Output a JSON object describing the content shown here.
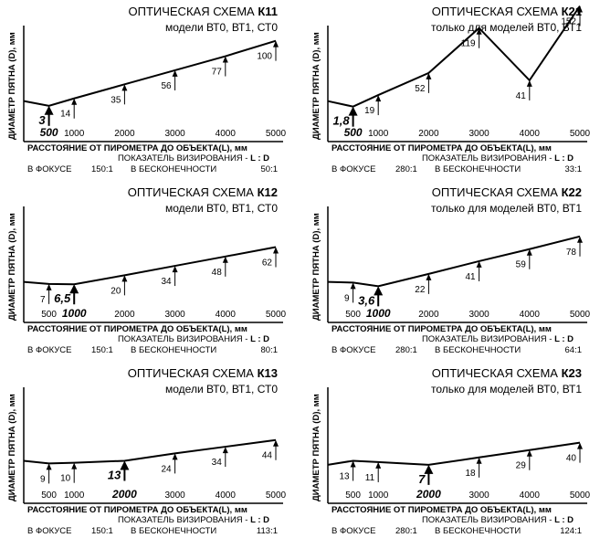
{
  "panels": [
    {
      "title_prefix": "ОПТИЧЕСКАЯ СХЕМА",
      "scheme": "К11",
      "subtitle": "модели ВТ0, ВТ1, СТ0",
      "ylabel": "ДИАМЕТР ПЯТНА (D), мм",
      "xlabel": "РАССТОЯНИЕ ОТ ПИРОМЕТРА ДО ОБЪЕКТА(L), мм",
      "ratio_caption_prefix": "ПОКАЗАТЕЛЬ ВИЗИРОВАНИЯ - ",
      "ratio_caption_bold": "L : D",
      "focus_label": "В ФОКУСЕ",
      "focus_ratio": "150:1",
      "infinity_label": "В БЕСКОНЕЧНОСТИ",
      "infinity_ratio": "50:1",
      "ticks": [
        "500",
        "1000",
        "2000",
        "3000",
        "4000",
        "5000"
      ],
      "focus_distance": 500,
      "chart_data": {
        "type": "line",
        "x": [
          500,
          1000,
          2000,
          3000,
          4000,
          5000
        ],
        "values": [
          3,
          14,
          35,
          56,
          77,
          100
        ],
        "labels": [
          "3",
          "14",
          "35",
          "56",
          "77",
          "100"
        ],
        "x_start": 300,
        "y_start": 10
      }
    },
    {
      "title_prefix": "ОПТИЧЕСКАЯ СХЕМА",
      "scheme": "К21",
      "subtitle": "только для моделей ВТ0, ВТ1",
      "ylabel": "ДИАМЕТР ПЯТНА (D), мм",
      "xlabel": "РАССТОЯНИЕ ОТ ПИРОМЕТРА ДО ОБЪЕКТА(L), мм",
      "ratio_caption_prefix": "ПОКАЗАТЕЛЬ ВИЗИРОВАНИЯ - ",
      "ratio_caption_bold": "L : D",
      "focus_label": "В ФОКУСЕ",
      "focus_ratio": "280:1",
      "infinity_label": "В БЕСКОНЕЧНОСТИ",
      "infinity_ratio": "33:1",
      "ticks": [
        "500",
        "1000",
        "2000",
        "3000",
        "4000",
        "5000"
      ],
      "focus_distance": 500,
      "chart_data": {
        "type": "line",
        "x": [
          500,
          1000,
          2000,
          3000,
          4000,
          5000
        ],
        "values": [
          1.8,
          19,
          52,
          119,
          41,
          152
        ],
        "labels": [
          "1,8",
          "19",
          "52",
          "119",
          "41",
          "152"
        ],
        "x_start": 300,
        "y_start": 10
      }
    },
    {
      "title_prefix": "ОПТИЧЕСКАЯ СХЕМА",
      "scheme": "К12",
      "subtitle": "модели ВТ0, ВТ1, СТ0",
      "ylabel": "ДИАМЕТР ПЯТНА (D), мм",
      "xlabel": "РАССТОЯНИЕ ОТ ПИРОМЕТРА ДО ОБЪЕКТА(L), мм",
      "ratio_caption_prefix": "ПОКАЗАТЕЛЬ ВИЗИРОВАНИЯ - ",
      "ratio_caption_bold": "L : D",
      "focus_label": "В ФОКУСЕ",
      "focus_ratio": "150:1",
      "infinity_label": "В БЕСКОНЕЧНОСТИ",
      "infinity_ratio": "80:1",
      "ticks": [
        "500",
        "1000",
        "2000",
        "3000",
        "4000",
        "5000"
      ],
      "focus_distance": 1000,
      "chart_data": {
        "type": "line",
        "x": [
          500,
          1000,
          2000,
          3000,
          4000,
          5000
        ],
        "values": [
          7,
          6.5,
          20,
          34,
          48,
          62
        ],
        "labels": [
          "7",
          "6,5",
          "20",
          "34",
          "48",
          "62"
        ],
        "x_start": 300,
        "y_start": 10
      }
    },
    {
      "title_prefix": "ОПТИЧЕСКАЯ СХЕМА",
      "scheme": "К22",
      "subtitle": "только для моделей ВТ0, ВТ1",
      "ylabel": "ДИАМЕТР ПЯТНА (D), мм",
      "xlabel": "РАССТОЯНИЕ ОТ ПИРОМЕТРА ДО ОБЪЕКТА(L), мм",
      "ratio_caption_prefix": "ПОКАЗАТЕЛЬ ВИЗИРОВАНИЯ - ",
      "ratio_caption_bold": "L : D",
      "focus_label": "В ФОКУСЕ",
      "focus_ratio": "280:1",
      "infinity_label": "В БЕСКОНЕЧНОСТИ",
      "infinity_ratio": "64:1",
      "ticks": [
        "500",
        "1000",
        "2000",
        "3000",
        "4000",
        "5000"
      ],
      "focus_distance": 1000,
      "chart_data": {
        "type": "line",
        "x": [
          500,
          1000,
          2000,
          3000,
          4000,
          5000
        ],
        "values": [
          9,
          3.6,
          22,
          41,
          59,
          78
        ],
        "labels": [
          "9",
          "3,6",
          "22",
          "41",
          "59",
          "78"
        ],
        "x_start": 300,
        "y_start": 10
      }
    },
    {
      "title_prefix": "ОПТИЧЕСКАЯ СХЕМА",
      "scheme": "К13",
      "subtitle": "модели ВТ0, ВТ1, СТ0",
      "ylabel": "ДИАМЕТР ПЯТНА (D), мм",
      "xlabel": "РАССТОЯНИЕ ОТ ПИРОМЕТРА ДО ОБЪЕКТА(L), мм",
      "ratio_caption_prefix": "ПОКАЗАТЕЛЬ ВИЗИРОВАНИЯ - ",
      "ratio_caption_bold": "L : D",
      "focus_label": "В ФОКУСЕ",
      "focus_ratio": "150:1",
      "infinity_label": "В БЕСКОНЕЧНОСТИ",
      "infinity_ratio": "113:1",
      "ticks": [
        "500",
        "1000",
        "2000",
        "3000",
        "4000",
        "5000"
      ],
      "focus_distance": 2000,
      "chart_data": {
        "type": "line",
        "x": [
          500,
          1000,
          2000,
          3000,
          4000,
          5000
        ],
        "values": [
          9,
          10,
          13,
          24,
          34,
          44
        ],
        "labels": [
          "9",
          "10",
          "13",
          "24",
          "34",
          "44"
        ],
        "x_start": 300,
        "y_start": 13
      }
    },
    {
      "title_prefix": "ОПТИЧЕСКАЯ СХЕМА",
      "scheme": "К23",
      "subtitle": "только для моделей ВТ0, ВТ1",
      "ylabel": "ДИАМЕТР ПЯТНА (D), мм",
      "xlabel": "РАССТОЯНИЕ ОТ ПИРОМЕТРА ДО ОБЪЕКТА(L), мм",
      "ratio_caption_prefix": "ПОКАЗАТЕЛЬ ВИЗИРОВАНИЯ - ",
      "ratio_caption_bold": "L : D",
      "focus_label": "В ФОКУСЕ",
      "focus_ratio": "280:1",
      "infinity_label": "В БЕСКОНЕЧНОСТИ",
      "infinity_ratio": "124:1",
      "ticks": [
        "500",
        "1000",
        "2000",
        "3000",
        "4000",
        "5000"
      ],
      "focus_distance": 2000,
      "chart_data": {
        "type": "line",
        "x": [
          500,
          1000,
          2000,
          3000,
          4000,
          5000
        ],
        "values": [
          13,
          11,
          7,
          18,
          29,
          40
        ],
        "labels": [
          "13",
          "11",
          "7",
          "18",
          "29",
          "40"
        ],
        "x_start": 300,
        "y_start": 7
      }
    }
  ]
}
